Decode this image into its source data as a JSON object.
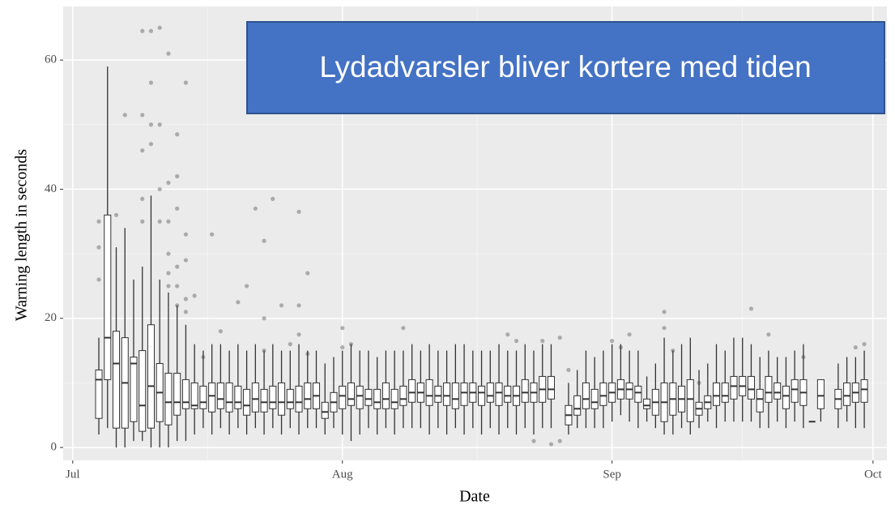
{
  "chart_data": {
    "type": "box",
    "title": "Lydadvarsler bliver kortere med tiden",
    "x_label": "Date",
    "y_label": "Warning length in seconds",
    "xlim": [
      -1.1,
      93.6
    ],
    "xticks": [
      {
        "value": 0,
        "label": "Jul"
      },
      {
        "value": 31,
        "label": "Aug"
      },
      {
        "value": 62,
        "label": "Sep"
      },
      {
        "value": 92,
        "label": "Oct"
      }
    ],
    "ylim": [
      -2,
      68.3
    ],
    "yticks": [
      0,
      20,
      40,
      60
    ],
    "grid": true,
    "box_color": "#ffffff",
    "line_color": "#333333",
    "outlier_color": "#7f7f7f",
    "boxes": [
      [
        3,
        2,
        4.5,
        10.5,
        12,
        17
      ],
      [
        4,
        3,
        10.5,
        17,
        36,
        59
      ],
      [
        5,
        0,
        3,
        13,
        18,
        31
      ],
      [
        6,
        0,
        3,
        10,
        17,
        34
      ],
      [
        7,
        1,
        4,
        13,
        14,
        26
      ],
      [
        8,
        1,
        2.5,
        6.5,
        15,
        28
      ],
      [
        9,
        0,
        3,
        9.5,
        19,
        39
      ],
      [
        10,
        0,
        4,
        8.5,
        13,
        26
      ],
      [
        11,
        0,
        3.5,
        7,
        11.5,
        24
      ],
      [
        12,
        1,
        5,
        7,
        11.5,
        22
      ],
      [
        13,
        1,
        6,
        7,
        10.5,
        19
      ],
      [
        14,
        2,
        6,
        6.5,
        10,
        16
      ],
      [
        15,
        3,
        6,
        7,
        9.5,
        15
      ],
      [
        16,
        2,
        5.5,
        8,
        10,
        16
      ],
      [
        17,
        3,
        6,
        7.5,
        10,
        16
      ],
      [
        18,
        2,
        5.5,
        7,
        10,
        15
      ],
      [
        19,
        3,
        6,
        7,
        9.5,
        16
      ],
      [
        20,
        2,
        5,
        6.5,
        9,
        15
      ],
      [
        21,
        3,
        5.5,
        7.5,
        10,
        16
      ],
      [
        22,
        2,
        5.5,
        7,
        9,
        15
      ],
      [
        23,
        3,
        6,
        7,
        9.5,
        16
      ],
      [
        24,
        2,
        5,
        7,
        10,
        15
      ],
      [
        25,
        3,
        6,
        7,
        9,
        15
      ],
      [
        26,
        2,
        5.5,
        7,
        9.5,
        16
      ],
      [
        27,
        3,
        6,
        7.5,
        10,
        15
      ],
      [
        28,
        3,
        6,
        8,
        10,
        15
      ],
      [
        29,
        2,
        4.5,
        5.5,
        7,
        13
      ],
      [
        30,
        3,
        5.5,
        7,
        8.5,
        14
      ],
      [
        31,
        2,
        6,
        8,
        9.5,
        15
      ],
      [
        32,
        1,
        6.5,
        7.5,
        10,
        16
      ],
      [
        33,
        2,
        6,
        8,
        9.5,
        15
      ],
      [
        34,
        3,
        6.5,
        7.5,
        9,
        15
      ],
      [
        35,
        2,
        6,
        7,
        9,
        14
      ],
      [
        36,
        3,
        6,
        7.5,
        10,
        15
      ],
      [
        37,
        2,
        6,
        7,
        9,
        15
      ],
      [
        38,
        3,
        6.5,
        7.5,
        9.5,
        15
      ],
      [
        39,
        3,
        7,
        8.5,
        10.5,
        16
      ],
      [
        40,
        3,
        7,
        8.5,
        10,
        15
      ],
      [
        41,
        2,
        6.5,
        8,
        10.5,
        16
      ],
      [
        42,
        3,
        7,
        8,
        9.5,
        15
      ],
      [
        43,
        2,
        6.5,
        8,
        10,
        15
      ],
      [
        44,
        3,
        6,
        7.5,
        10,
        16
      ],
      [
        45,
        2,
        6.5,
        8.5,
        10,
        16
      ],
      [
        46,
        3,
        7,
        8.5,
        10,
        15
      ],
      [
        47,
        2,
        6.5,
        8.5,
        9.5,
        15
      ],
      [
        48,
        3,
        7,
        8,
        10,
        15
      ],
      [
        49,
        2,
        6.5,
        8.5,
        10,
        16
      ],
      [
        50,
        3,
        7,
        8,
        9.5,
        15
      ],
      [
        51,
        2,
        6.5,
        8,
        9.5,
        15
      ],
      [
        52,
        3,
        7,
        8.5,
        10.5,
        16
      ],
      [
        53,
        2,
        7,
        8.5,
        10,
        15
      ],
      [
        54,
        3,
        7,
        9,
        11,
        16
      ],
      [
        55,
        3,
        7.5,
        9,
        11,
        16
      ],
      [
        57,
        2,
        3.5,
        5,
        6.5,
        10
      ],
      [
        58,
        3,
        5,
        6,
        8,
        12
      ],
      [
        59,
        3,
        6,
        7.5,
        10,
        15
      ],
      [
        60,
        3,
        6,
        7,
        9,
        14
      ],
      [
        61,
        3,
        6.5,
        8,
        10,
        15
      ],
      [
        62,
        4,
        7,
        8.5,
        10,
        16
      ],
      [
        63,
        5,
        7.5,
        9,
        10.5,
        16
      ],
      [
        64,
        4,
        7.5,
        9,
        10,
        15
      ],
      [
        65,
        3,
        7,
        8.5,
        9.5,
        15
      ],
      [
        66,
        4,
        6,
        6.5,
        7.5,
        11
      ],
      [
        67,
        3,
        5,
        7,
        9,
        13
      ],
      [
        68,
        2,
        4,
        7,
        10,
        17
      ],
      [
        69,
        2,
        5,
        7.5,
        10,
        15
      ],
      [
        70,
        3,
        5.5,
        7.5,
        9.5,
        16
      ],
      [
        71,
        2,
        4,
        7.5,
        10.5,
        17
      ],
      [
        72,
        3,
        5,
        6,
        7,
        12
      ],
      [
        73,
        4,
        6,
        7,
        8,
        13
      ],
      [
        74,
        3,
        6.5,
        8,
        10,
        16
      ],
      [
        75,
        4,
        7,
        8,
        10,
        15
      ],
      [
        76,
        4,
        7.5,
        9.5,
        11,
        17
      ],
      [
        77,
        4,
        8,
        9.5,
        11,
        17
      ],
      [
        78,
        4,
        7.5,
        9,
        11,
        16
      ],
      [
        79,
        3,
        5.5,
        7.5,
        9,
        14
      ],
      [
        80,
        3,
        7,
        8.5,
        11,
        15
      ],
      [
        81,
        4,
        7.5,
        8.5,
        10,
        14
      ],
      [
        82,
        3,
        6,
        8,
        9.5,
        14
      ],
      [
        83,
        4,
        7,
        9,
        10.5,
        15
      ],
      [
        84,
        3,
        6.5,
        8.5,
        10.5,
        16
      ],
      [
        85,
        4,
        4,
        4,
        4,
        4
      ],
      [
        86,
        4,
        6,
        8,
        10.5,
        10.5
      ],
      [
        88,
        3,
        6,
        7.5,
        9,
        13
      ],
      [
        89,
        4,
        6.5,
        8,
        10,
        14
      ],
      [
        90,
        3,
        7,
        8.5,
        10,
        14
      ],
      [
        91,
        3,
        7,
        9,
        10.5,
        15
      ]
    ],
    "outliers": [
      [
        3,
        26
      ],
      [
        3,
        31
      ],
      [
        3,
        35
      ],
      [
        5,
        36
      ],
      [
        6,
        51.5
      ],
      [
        8,
        35
      ],
      [
        8,
        38.5
      ],
      [
        8,
        46
      ],
      [
        8,
        51.5
      ],
      [
        8,
        64.5
      ],
      [
        9,
        47
      ],
      [
        9,
        50
      ],
      [
        9,
        56.5
      ],
      [
        9,
        64.5
      ],
      [
        10,
        35
      ],
      [
        10,
        40
      ],
      [
        10,
        50
      ],
      [
        10,
        65
      ],
      [
        11,
        25
      ],
      [
        11,
        27
      ],
      [
        11,
        30
      ],
      [
        11,
        35
      ],
      [
        11,
        41
      ],
      [
        11,
        61
      ],
      [
        12,
        22
      ],
      [
        12,
        25
      ],
      [
        12,
        28
      ],
      [
        12,
        37
      ],
      [
        12,
        42
      ],
      [
        12,
        48.5
      ],
      [
        13,
        21
      ],
      [
        13,
        23
      ],
      [
        13,
        29
      ],
      [
        13,
        33
      ],
      [
        13,
        56.5
      ],
      [
        14,
        23.5
      ],
      [
        15,
        14
      ],
      [
        16,
        33
      ],
      [
        17,
        18
      ],
      [
        19,
        22.5
      ],
      [
        20,
        25
      ],
      [
        21,
        37
      ],
      [
        22,
        20
      ],
      [
        22,
        32
      ],
      [
        22,
        15
      ],
      [
        23,
        38.5
      ],
      [
        24,
        22
      ],
      [
        25,
        16
      ],
      [
        26,
        36.5
      ],
      [
        26,
        22
      ],
      [
        26,
        17.5
      ],
      [
        27,
        27
      ],
      [
        27,
        14.5
      ],
      [
        31,
        18.5
      ],
      [
        31,
        15.5
      ],
      [
        32,
        16
      ],
      [
        38,
        18.5
      ],
      [
        50,
        17.5
      ],
      [
        51,
        16.5
      ],
      [
        53,
        1
      ],
      [
        54,
        16.5
      ],
      [
        55,
        0.5
      ],
      [
        56,
        1
      ],
      [
        56,
        17
      ],
      [
        57,
        12
      ],
      [
        62,
        16.5
      ],
      [
        63,
        15.5
      ],
      [
        64,
        17.5
      ],
      [
        68,
        21
      ],
      [
        68,
        18.5
      ],
      [
        69,
        15
      ],
      [
        72,
        10
      ],
      [
        78,
        21.5
      ],
      [
        80,
        17.5
      ],
      [
        84,
        14
      ],
      [
        90,
        15.5
      ],
      [
        91,
        16
      ]
    ]
  }
}
